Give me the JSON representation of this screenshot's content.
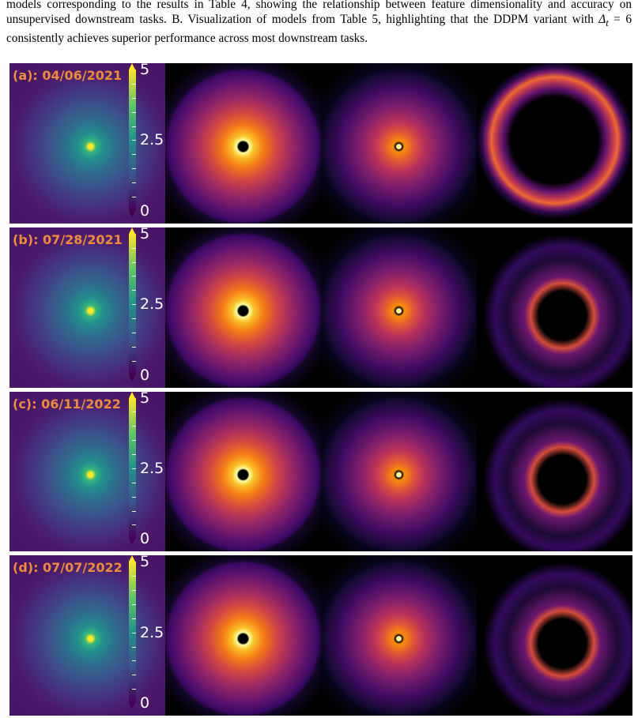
{
  "caption": {
    "text_before": "models corresponding to the results in Table 4, showing the relationship between feature dimensionality and accuracy on unsupervised downstream tasks. B. Visualization of models from Table 5, highlighting that the DDPM variant with ",
    "math": {
      "symbol": "Δ",
      "subscript": "t",
      "rest": " = 6"
    },
    "text_after": " consistently achieves superior performance across most downstream tasks."
  },
  "figure": {
    "rows": [
      {
        "label": "(a): 04/06/2021",
        "colorbar_ticks": [
          5,
          2.5,
          0
        ]
      },
      {
        "label": "(b): 07/28/2021",
        "colorbar_ticks": [
          5,
          2.5,
          0
        ]
      },
      {
        "label": "(c): 06/11/2022",
        "colorbar_ticks": [
          5,
          2.5,
          0
        ]
      },
      {
        "label": "(d): 07/07/2022",
        "colorbar_ticks": [
          5,
          2.5,
          0
        ]
      }
    ]
  }
}
